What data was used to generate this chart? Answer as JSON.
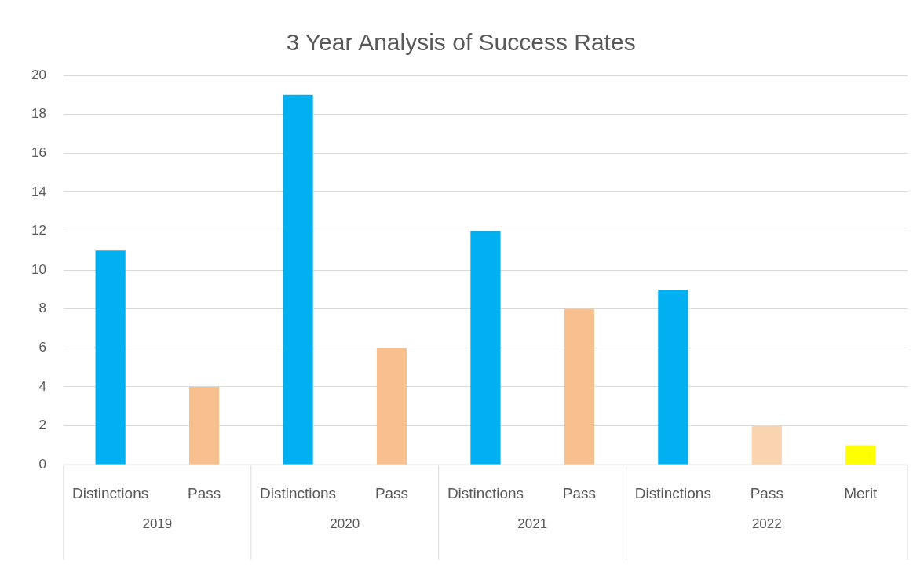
{
  "chart_data": {
    "type": "bar",
    "title": "3 Year Analysis of Success Rates",
    "categories": [
      "Distinctions",
      "Pass",
      "Distinctions",
      "Pass",
      "Distinctions",
      "Pass",
      "Distinctions",
      "Pass",
      "Merit"
    ],
    "values": [
      11,
      4,
      19,
      6,
      12,
      8,
      9,
      2,
      1
    ],
    "colors": [
      "#00b0f0",
      "#f8c08f",
      "#00b0f0",
      "#f8c08f",
      "#00b0f0",
      "#f8c08f",
      "#00b0f0",
      "#fad4b0",
      "#ffff00"
    ],
    "ylim": [
      0,
      20
    ],
    "yticks": [
      0,
      2,
      4,
      6,
      8,
      10,
      12,
      14,
      16,
      18,
      20
    ],
    "grid": "y",
    "annotations": [
      "2019",
      "2020",
      "2021",
      "2022"
    ]
  }
}
